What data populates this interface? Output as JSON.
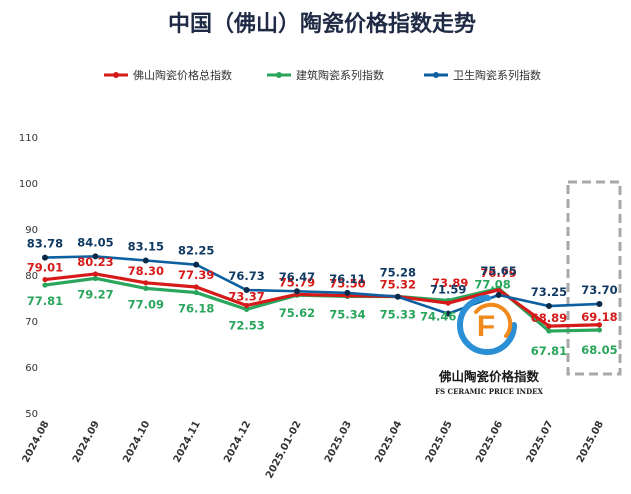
{
  "chart_data": {
    "type": "line",
    "title": "中国（佛山）陶瓷价格指数走势",
    "categories": [
      "2024.08",
      "2024.09",
      "2024.10",
      "2024.11",
      "2024.12",
      "2025.01-02",
      "2025.03",
      "2025.04",
      "2025.05",
      "2025.06",
      "2025.07",
      "2025.08"
    ],
    "ylim": [
      50,
      110
    ],
    "yticks": [
      50,
      60,
      70,
      80,
      90,
      100,
      110
    ],
    "legend_position": "top",
    "series": [
      {
        "name": "佛山陶瓷价格总指数",
        "color": "#d61a1a",
        "values": [
          79.01,
          80.23,
          78.3,
          77.39,
          73.37,
          75.79,
          75.5,
          75.32,
          73.89,
          76.79,
          68.89,
          69.18
        ]
      },
      {
        "name": "建筑陶瓷系列指数",
        "color": "#2aa55c",
        "values": [
          77.81,
          79.27,
          77.09,
          76.18,
          72.53,
          75.62,
          75.34,
          75.33,
          74.46,
          77.08,
          67.81,
          68.05
        ]
      },
      {
        "name": "卫生陶瓷系列指数",
        "color": "#0d5fa0",
        "values": [
          83.78,
          84.05,
          83.15,
          82.25,
          76.73,
          76.47,
          76.11,
          75.28,
          71.59,
          75.65,
          73.25,
          73.7
        ]
      }
    ]
  },
  "watermark": {
    "cn": "佛山陶瓷价格指数",
    "en": "FS CERAMIC PRICE INDEX",
    "logo_letter": "F"
  }
}
